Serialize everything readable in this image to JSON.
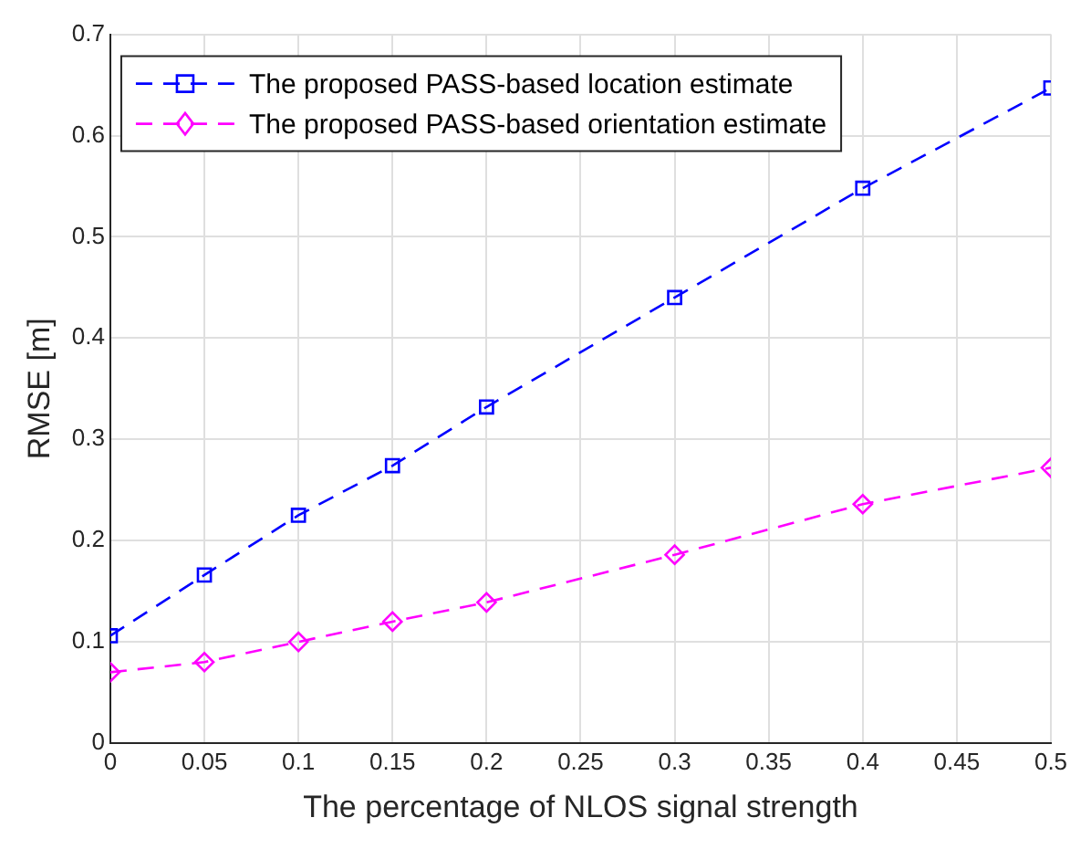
{
  "chart_data": {
    "type": "line",
    "xlabel": "The percentage of NLOS signal strength",
    "ylabel": "RMSE [m]",
    "x": [
      0,
      0.05,
      0.1,
      0.15,
      0.2,
      0.3,
      0.4,
      0.5
    ],
    "series": [
      {
        "name": "The proposed PASS-based location estimate",
        "color": "#0000ff",
        "marker": "square",
        "line_style": "dashed",
        "values": [
          0.106,
          0.166,
          0.225,
          0.274,
          0.332,
          0.44,
          0.548,
          0.647
        ]
      },
      {
        "name": "The proposed PASS-based orientation estimate",
        "color": "#ff00ff",
        "marker": "diamond",
        "line_style": "dashed",
        "values": [
          0.07,
          0.08,
          0.1,
          0.12,
          0.139,
          0.186,
          0.236,
          0.272
        ]
      }
    ],
    "xlim": [
      0,
      0.5
    ],
    "xticks": [
      0,
      0.05,
      0.1,
      0.15,
      0.2,
      0.25,
      0.3,
      0.35,
      0.4,
      0.45,
      0.5
    ],
    "ylim": [
      0,
      0.7
    ],
    "yticks": [
      0,
      0.1,
      0.2,
      0.3,
      0.4,
      0.5,
      0.6,
      0.7
    ],
    "grid": true,
    "legend": "top left"
  }
}
